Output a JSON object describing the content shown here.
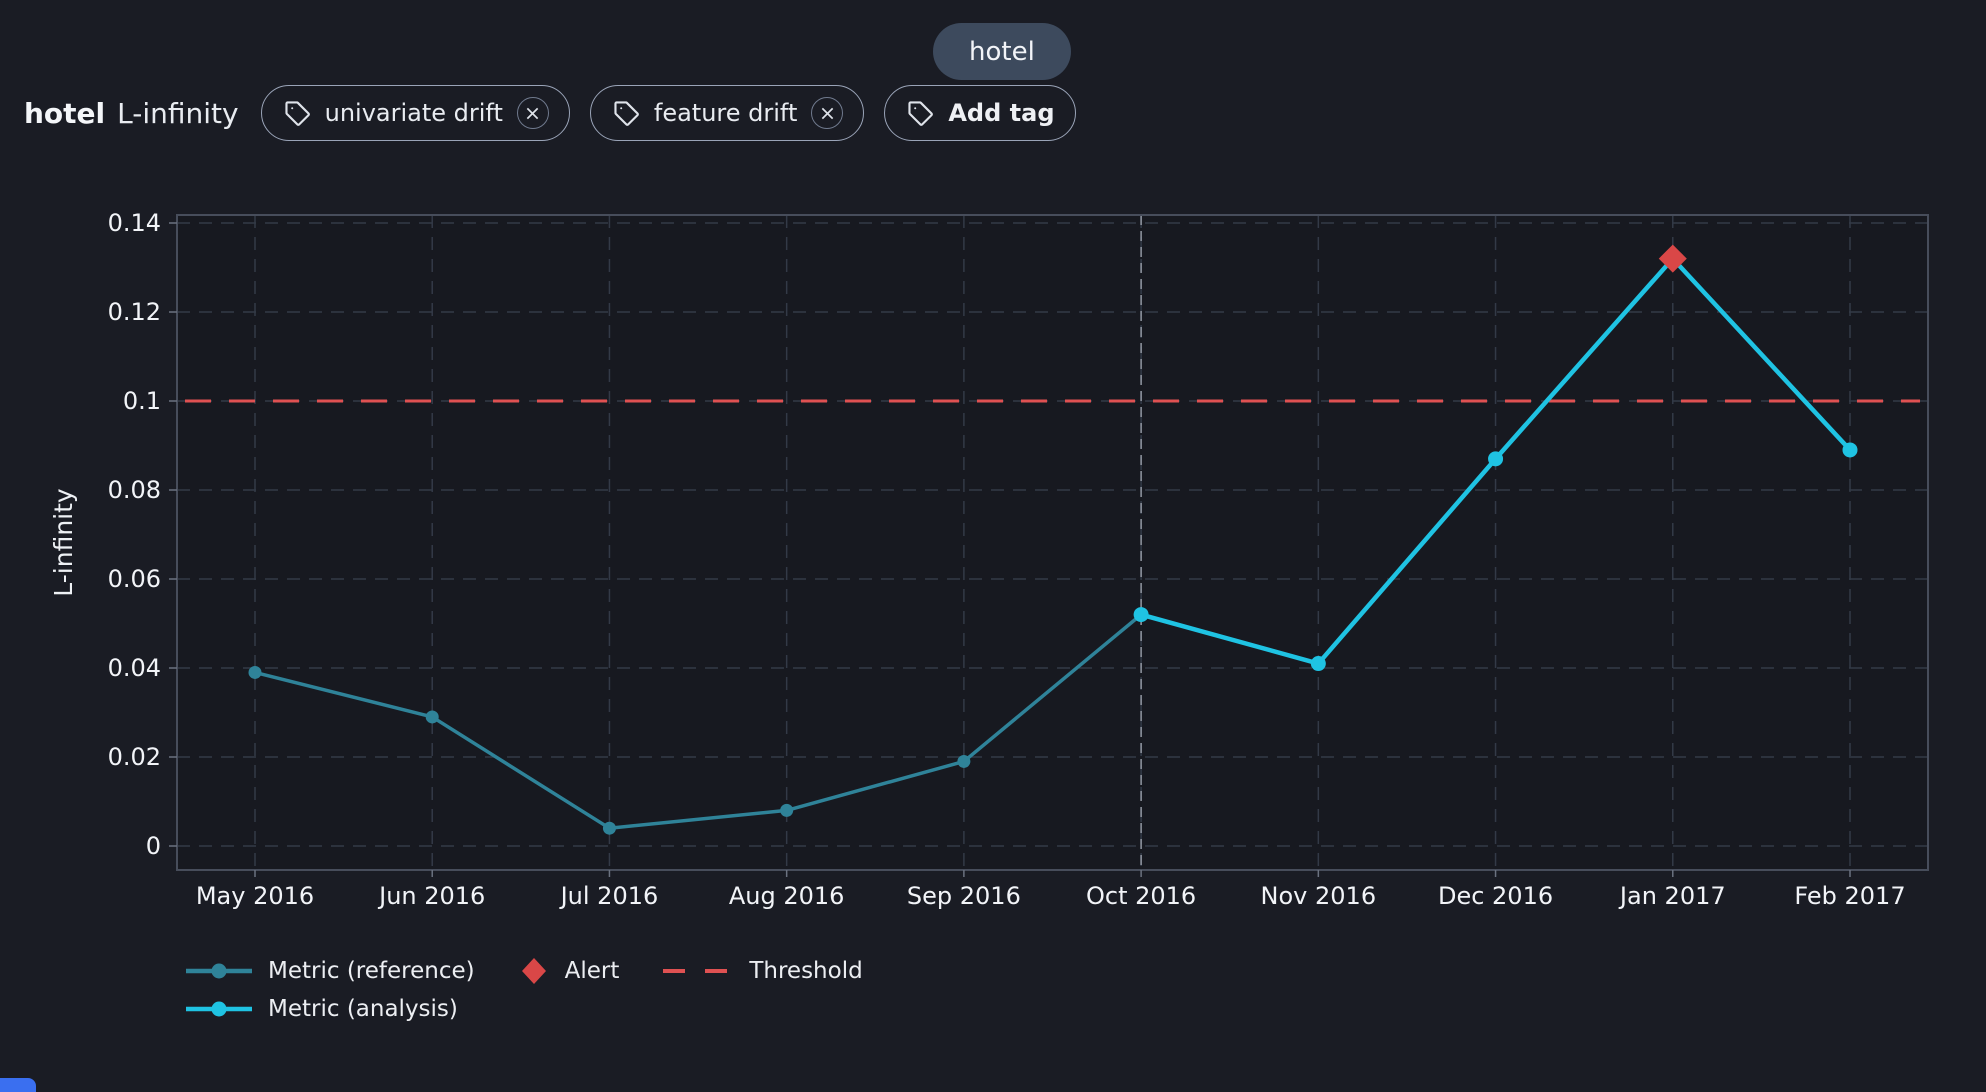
{
  "header": {
    "model_chip_label": "hotel"
  },
  "title": {
    "model": "hotel",
    "metric": "L-infinity"
  },
  "tags": {
    "items": [
      {
        "label": "univariate drift"
      },
      {
        "label": "feature drift"
      }
    ],
    "add_label": "Add tag"
  },
  "chart_data": {
    "type": "line",
    "title": "",
    "xlabel": "",
    "ylabel": "L-infinity",
    "x_categories": [
      "May 2016",
      "Jun 2016",
      "Jul 2016",
      "Aug 2016",
      "Sep 2016",
      "Oct 2016",
      "Nov 2016",
      "Dec 2016",
      "Jan 2017",
      "Feb 2017"
    ],
    "ylim": [
      0,
      0.14
    ],
    "ytick_step": 0.02,
    "yticks": [
      0,
      0.02,
      0.04,
      0.06,
      0.08,
      0.1,
      0.12,
      0.14
    ],
    "grid": true,
    "legend_position": "bottom-left",
    "series": [
      {
        "name": "Metric (reference)",
        "color": "#2f8399",
        "x": [
          "May 2016",
          "Jun 2016",
          "Jul 2016",
          "Aug 2016",
          "Sep 2016"
        ],
        "x_indices": [
          0,
          1,
          2,
          3,
          4
        ],
        "values": [
          0.039,
          0.029,
          0.004,
          0.008,
          0.019
        ],
        "connects_to_next_series": true
      },
      {
        "name": "Metric (analysis)",
        "color": "#1fc3e3",
        "x": [
          "Oct 2016",
          "Nov 2016",
          "Dec 2016",
          "Jan 2017",
          "Feb 2017"
        ],
        "x_indices": [
          5,
          6,
          7,
          8,
          9
        ],
        "values": [
          0.052,
          0.041,
          0.087,
          0.132,
          0.089
        ]
      }
    ],
    "threshold": {
      "label": "Threshold",
      "value": 0.1,
      "color": "#df5152",
      "style": "dashed"
    },
    "alerts": [
      {
        "label": "Alert",
        "x": "Jan 2017",
        "x_index": 8,
        "value": 0.132,
        "color": "#d94747",
        "marker": "diamond"
      }
    ],
    "divider": {
      "x": "Oct 2016",
      "x_index": 5,
      "color": "#9298a3",
      "style": "dashed"
    },
    "colors": {
      "page_bg": "#1a1c24",
      "plot_bg": "#171920",
      "plot_border": "#474d5b",
      "gridline": "#333a47",
      "tick_text": "#f2f4f8"
    }
  }
}
